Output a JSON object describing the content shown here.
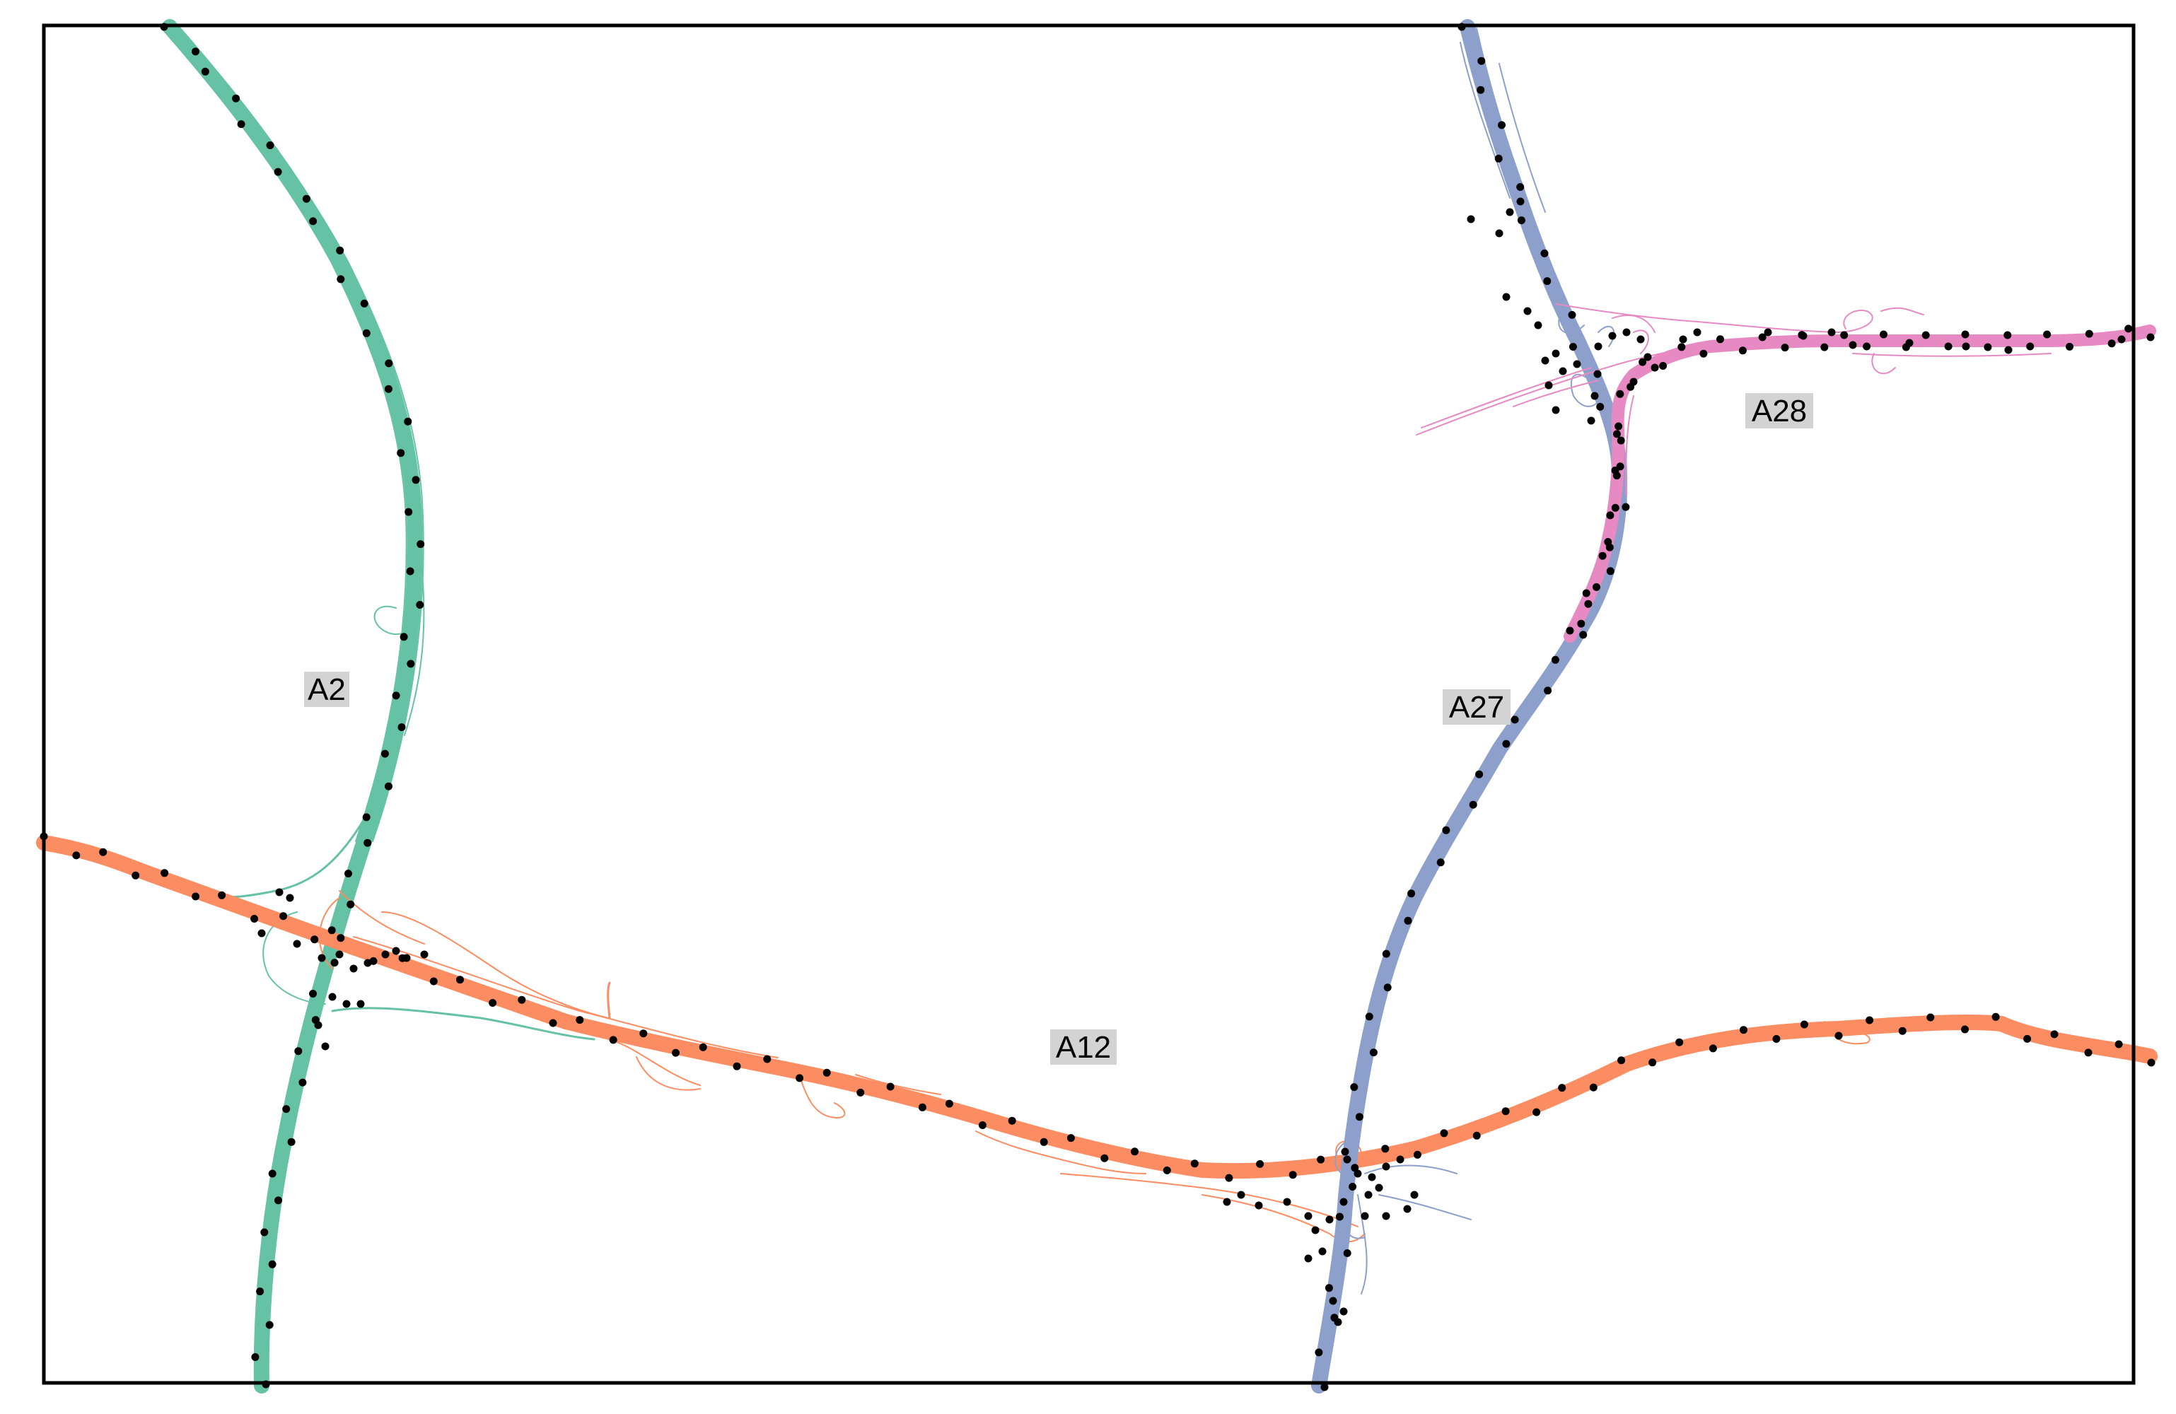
{
  "roads": [
    {
      "name": "A2",
      "color": "#66c2a5"
    },
    {
      "name": "A12",
      "color": "#fc8d62"
    },
    {
      "name": "A27",
      "color": "#8da0cb"
    },
    {
      "name": "A28",
      "color": "#e78ac3"
    }
  ],
  "colors": {
    "frame": "#000000",
    "label_background": "#d3d3d3",
    "sensor_points": "#000000"
  }
}
